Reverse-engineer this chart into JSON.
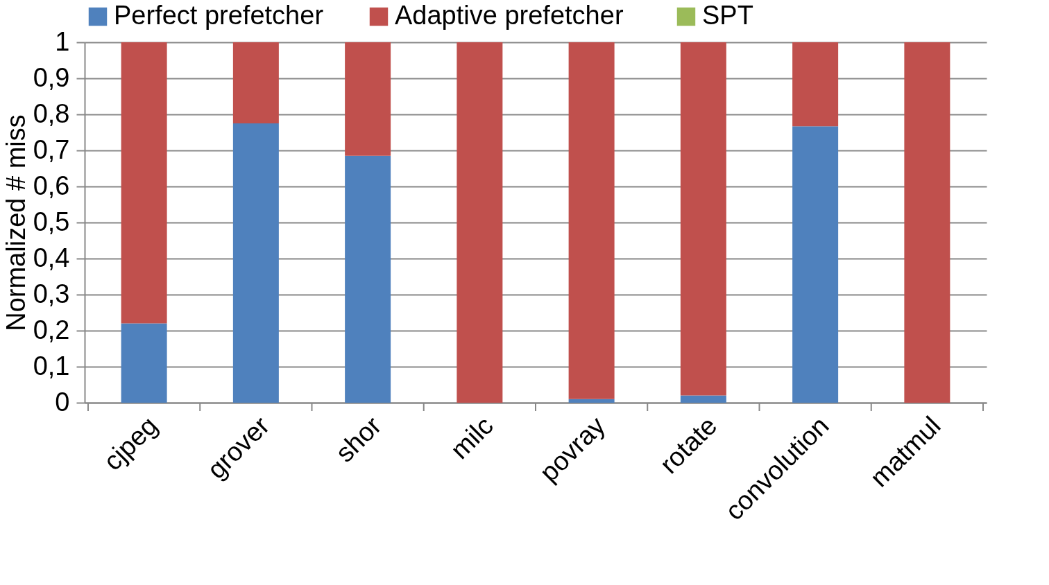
{
  "chart_data": {
    "type": "bar",
    "stacked": true,
    "ylabel": "Normalized # miss",
    "categories": [
      "cjpeg",
      "grover",
      "shor",
      "milc",
      "povray",
      "rotate",
      "convolution",
      "matmul"
    ],
    "series": [
      {
        "name": "Perfect prefetcher",
        "color": "#4f81bd",
        "values": [
          0.22,
          0.775,
          0.685,
          0,
          0.01,
          0.02,
          0.767,
          0
        ]
      },
      {
        "name": "Adaptive  prefetcher",
        "color": "#c0504d",
        "values": [
          0.78,
          0.225,
          0.315,
          1,
          0.99,
          0.98,
          0.233,
          1
        ]
      },
      {
        "name": "SPT",
        "color": "#9bbb59",
        "values": [
          0,
          0,
          0,
          0,
          0,
          0,
          0,
          0
        ]
      }
    ],
    "ylim": [
      0,
      1
    ],
    "yticks": [
      0,
      {
        "value": 0.1,
        "label": "0,1"
      },
      {
        "value": 0.2,
        "label": "0,2"
      },
      {
        "value": 0.3,
        "label": "0,3"
      },
      {
        "value": 0.4,
        "label": "0,4"
      },
      {
        "value": 0.5,
        "label": "0,5"
      },
      {
        "value": 0.6,
        "label": "0,6"
      },
      {
        "value": 0.7,
        "label": "0,7"
      },
      {
        "value": 0.8,
        "label": "0,8"
      },
      {
        "value": 0.9,
        "label": "0,9"
      },
      1
    ],
    "grid": "y",
    "legend": "top"
  }
}
